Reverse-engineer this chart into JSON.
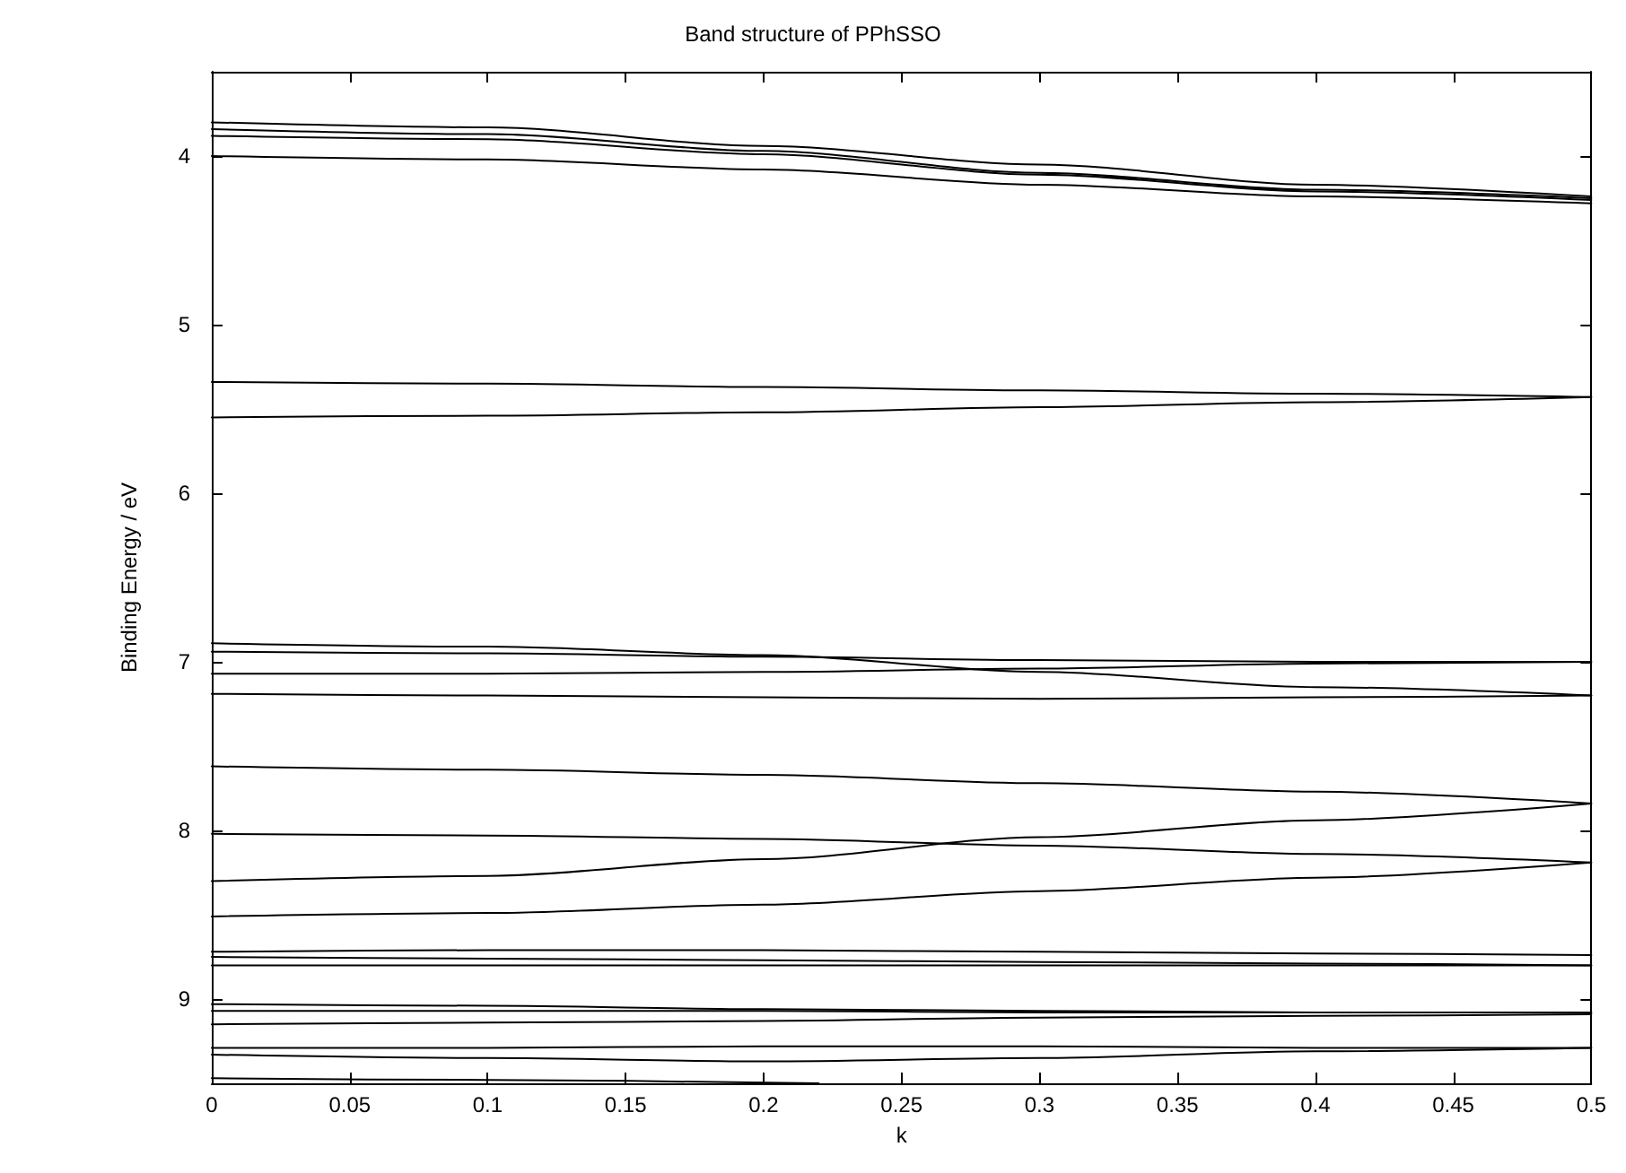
{
  "chart_data": {
    "type": "line",
    "title": "Band structure of PPhSSO",
    "xlabel": "k",
    "ylabel": "Binding Energy / eV",
    "x": [
      0,
      0.1,
      0.2,
      0.3,
      0.4,
      0.5
    ],
    "xlim": [
      0,
      0.5
    ],
    "xticks": [
      0,
      0.05,
      0.1,
      0.15,
      0.2,
      0.25,
      0.3,
      0.35,
      0.4,
      0.45,
      0.5
    ],
    "ylim": [
      9.5,
      3.5
    ],
    "yticks": [
      4,
      5,
      6,
      7,
      8,
      9
    ],
    "grid": false,
    "marker": "none",
    "line_style": "solid",
    "series": [
      {
        "color": "#000000",
        "values": [
          3.8,
          3.83,
          3.94,
          4.05,
          4.17,
          4.24
        ]
      },
      {
        "color": "#000000",
        "values": [
          3.84,
          3.87,
          3.97,
          4.1,
          4.2,
          4.25
        ]
      },
      {
        "color": "#000000",
        "values": [
          3.88,
          3.9,
          3.99,
          4.11,
          4.21,
          4.26
        ]
      },
      {
        "color": "#000000",
        "values": [
          4.0,
          4.02,
          4.08,
          4.17,
          4.24,
          4.28
        ]
      },
      {
        "color": "#000000",
        "values": [
          5.34,
          5.35,
          5.37,
          5.39,
          5.41,
          5.43
        ]
      },
      {
        "color": "#000000",
        "values": [
          5.55,
          5.54,
          5.52,
          5.49,
          5.46,
          5.43
        ]
      },
      {
        "color": "#000000",
        "values": [
          6.89,
          6.91,
          6.96,
          7.06,
          7.15,
          7.2
        ]
      },
      {
        "color": "#000000",
        "values": [
          6.94,
          6.95,
          6.97,
          6.99,
          7.0,
          7.0
        ]
      },
      {
        "color": "#000000",
        "values": [
          7.07,
          7.07,
          7.06,
          7.04,
          7.01,
          7.0
        ]
      },
      {
        "color": "#000000",
        "values": [
          7.19,
          7.2,
          7.21,
          7.22,
          7.21,
          7.2
        ]
      },
      {
        "color": "#000000",
        "values": [
          7.62,
          7.64,
          7.67,
          7.72,
          7.77,
          7.84
        ]
      },
      {
        "color": "#000000",
        "values": [
          8.02,
          8.03,
          8.05,
          8.09,
          8.14,
          8.19
        ]
      },
      {
        "color": "#000000",
        "values": [
          8.3,
          8.27,
          8.17,
          8.04,
          7.94,
          7.84
        ]
      },
      {
        "color": "#000000",
        "values": [
          8.51,
          8.49,
          8.44,
          8.36,
          8.28,
          8.19
        ]
      },
      {
        "color": "#000000",
        "values": [
          8.72,
          8.71,
          8.71,
          8.72,
          8.73,
          8.74
        ]
      },
      {
        "color": "#000000",
        "values": [
          8.75,
          8.76,
          8.77,
          8.78,
          8.79,
          8.8
        ]
      },
      {
        "color": "#000000",
        "values": [
          8.8,
          8.8,
          8.8,
          8.8,
          8.8,
          8.8
        ]
      },
      {
        "color": "#000000",
        "values": [
          9.03,
          9.04,
          9.06,
          9.07,
          9.08,
          9.08
        ]
      },
      {
        "color": "#000000",
        "values": [
          9.07,
          9.07,
          9.07,
          9.08,
          9.08,
          9.08
        ]
      },
      {
        "color": "#000000",
        "values": [
          9.15,
          9.14,
          9.13,
          9.11,
          9.1,
          9.09
        ]
      },
      {
        "color": "#000000",
        "values": [
          9.29,
          9.29,
          9.28,
          9.28,
          9.29,
          9.29
        ]
      },
      {
        "color": "#000000",
        "values": [
          9.33,
          9.35,
          9.37,
          9.35,
          9.31,
          9.29
        ]
      },
      {
        "color": "#000000",
        "x": [
          0,
          0.1,
          0.22
        ],
        "values": [
          9.47,
          9.48,
          9.5
        ]
      }
    ]
  }
}
